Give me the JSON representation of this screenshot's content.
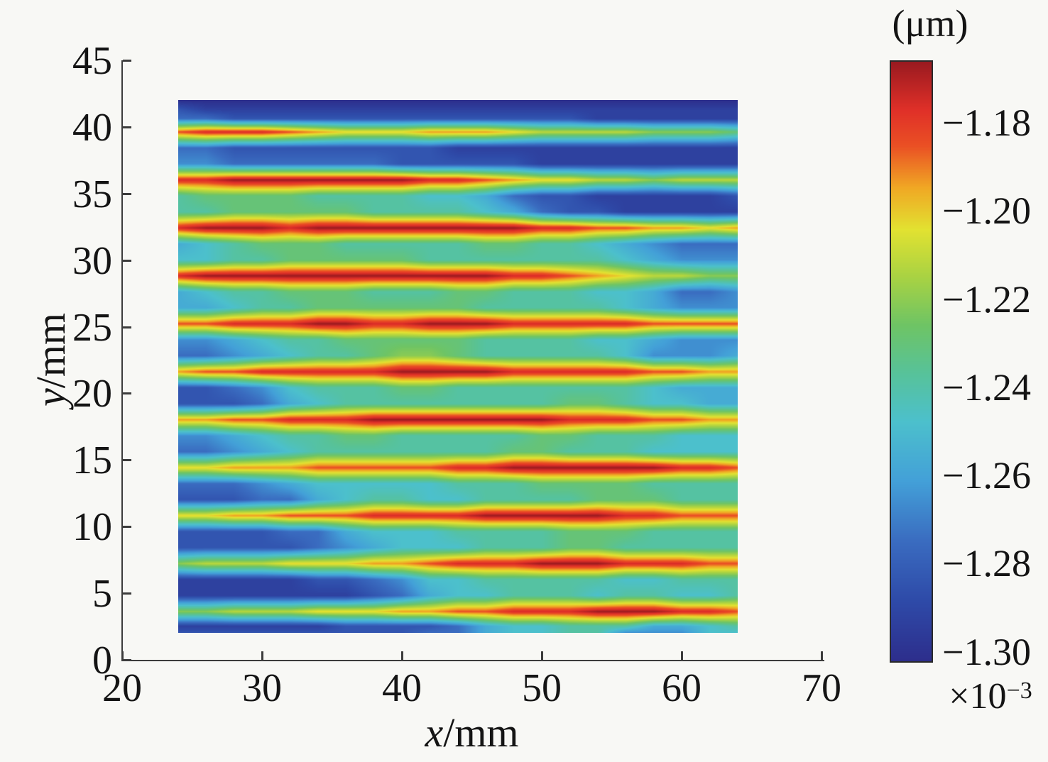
{
  "figure": {
    "background": "#f8f8f5",
    "axis_color": "#3c3c3c",
    "text_color": "#141414"
  },
  "chart_data": {
    "type": "heatmap",
    "title": "",
    "xlabel": "x/mm",
    "ylabel": "y/mm",
    "xlabel_var": "x",
    "xlabel_unit": "/mm",
    "ylabel_var": "y",
    "ylabel_unit": "/mm",
    "xlim": [
      20,
      70
    ],
    "ylim": [
      0,
      45
    ],
    "x_ticks": [
      20,
      30,
      40,
      50,
      60,
      70
    ],
    "y_ticks": [
      0,
      5,
      10,
      15,
      20,
      25,
      30,
      35,
      40,
      45
    ],
    "x_extent": [
      24,
      64
    ],
    "y_extent": [
      2,
      42
    ],
    "grid_on": false,
    "stripe_centers_y_mm": [
      3.6,
      7.2,
      10.8,
      14.4,
      18.0,
      21.6,
      25.2,
      28.8,
      32.4,
      36.0,
      39.6
    ],
    "value_unit": "um x 10^-3",
    "value_range": [
      -1.302,
      -1.166
    ],
    "value_encoding": "each character is a hex digit 0-15; value_um = -1.302 + (digit/15)*0.136 (x10^-3 um); columns follow grid_x, rows follow grid_rows_y",
    "grid_x": [
      24,
      26,
      28,
      30,
      32,
      34,
      36,
      38,
      40,
      42,
      44,
      46,
      48,
      50,
      52,
      54,
      56,
      58,
      60,
      62,
      64
    ],
    "grid_rows_y": [
      42.0,
      41.3,
      40.6,
      39.6,
      38.4,
      37.2,
      36.0,
      34.8,
      33.6,
      32.4,
      31.2,
      30.0,
      28.8,
      27.6,
      26.4,
      25.2,
      24.0,
      22.8,
      21.6,
      20.4,
      19.2,
      18.0,
      16.8,
      15.6,
      14.4,
      13.2,
      12.0,
      10.8,
      9.6,
      8.4,
      7.2,
      6.0,
      4.8,
      3.6,
      2.5,
      2.0
    ],
    "grid_rows_values": [
      "000000000000000000000",
      "211111111111111111111",
      "332222222222222111111",
      "deeedcbbbcccbaaaa9998",
      "332222222211111111111",
      "443333332222211111111",
      "eefffffffeedcbbaa9aaa",
      "788887777665322111112",
      "778888877776532211111",
      "efffeffffffffeeddccbc",
      "567888777778877654333",
      "667788888777777765444",
      "efffffffffffeedcbaa99",
      "567788877788777665334",
      "556778888887777765444",
      "ddeeeffeefffeeeeedddd",
      "445677888887777665444",
      "334567789987777764445",
      "cddeeeeeffffeeeeeddcc",
      "223467778877777776555",
      "222356777777778876655",
      "ccddeeefffffffeeeddcc",
      "445677887777788777666",
      "334567777777887776666",
      "bbcccdddddeeffffffeed",
      "333456666677788887777",
      "222335677667777888777",
      "bbccdddeeeefffffeeddd",
      "222233566677778887777",
      "222223456667778877777",
      "9aaabbbccdeeefffeeedd",
      "111112234667777766777",
      "111111123566777677667",
      "99aaabbbccddeeefffeed",
      "111111222235667775567",
      "222222222335667744466"
    ],
    "colorbar": {
      "unit_label": "(μm)",
      "multiplier": "×10",
      "multiplier_exp": "−3",
      "tick_labels": [
        "−1.18",
        "−1.20",
        "−1.22",
        "−1.24",
        "−1.26",
        "−1.28",
        "−1.30"
      ],
      "tick_values": [
        -1.18,
        -1.2,
        -1.22,
        -1.24,
        -1.26,
        -1.28,
        -1.3
      ],
      "vmin": -1.302,
      "vmax": -1.166,
      "position": "right",
      "colormap": [
        [
          0.0,
          "#2d2e8c"
        ],
        [
          0.1,
          "#2e4aa8"
        ],
        [
          0.2,
          "#3a6cc0"
        ],
        [
          0.3,
          "#43a0d8"
        ],
        [
          0.4,
          "#4cc0cc"
        ],
        [
          0.48,
          "#57c29a"
        ],
        [
          0.56,
          "#6ec465"
        ],
        [
          0.64,
          "#a8d243"
        ],
        [
          0.72,
          "#e2e231"
        ],
        [
          0.79,
          "#f0a824"
        ],
        [
          0.86,
          "#ea5024"
        ],
        [
          0.92,
          "#e03028"
        ],
        [
          1.0,
          "#9a1a20"
        ]
      ]
    }
  }
}
